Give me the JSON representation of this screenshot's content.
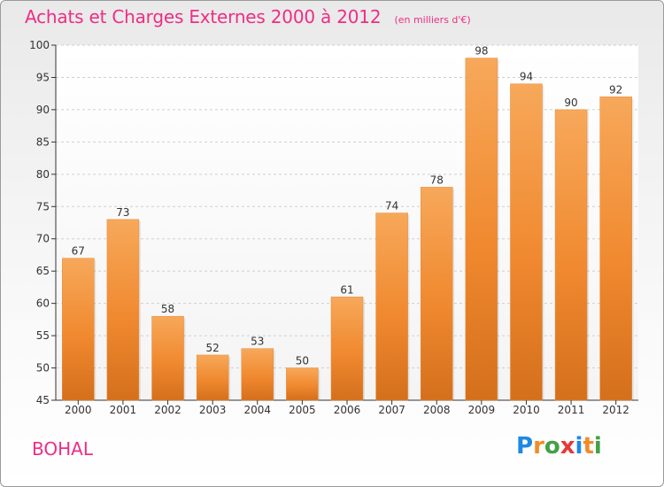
{
  "chart_data": {
    "type": "bar",
    "title": "Achats et Charges Externes 2000 à 2012",
    "subtitle": "(en milliers d'€)",
    "categories": [
      "2000",
      "2001",
      "2002",
      "2003",
      "2004",
      "2005",
      "2006",
      "2007",
      "2008",
      "2009",
      "2010",
      "2011",
      "2012"
    ],
    "values": [
      67,
      73,
      58,
      52,
      53,
      50,
      61,
      74,
      78,
      98,
      94,
      90,
      92
    ],
    "ylim": [
      45,
      100
    ],
    "yticks": [
      45,
      50,
      55,
      60,
      65,
      70,
      75,
      80,
      85,
      90,
      95,
      100
    ],
    "grid": true,
    "data_labels": true,
    "bar_color": "#f0892f",
    "bar_color_light": "#f7a85a",
    "bar_color_dark": "#d46f1c"
  },
  "place": "BOHAL",
  "brand": {
    "logo_text": "Proxiti",
    "letter_colors": [
      "#1e88e5",
      "#f28c28",
      "#43a047",
      "#e53935",
      "#1e88e5",
      "#f28c28",
      "#43a047"
    ]
  },
  "colors": {
    "title": "#ee2e85",
    "axis": "#333333",
    "grid": "#cfcfcf"
  }
}
